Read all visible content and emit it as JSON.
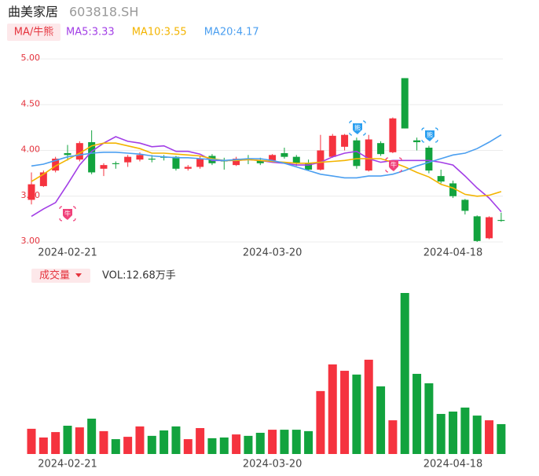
{
  "chart_data": [
    {
      "type": "candlestick",
      "title": "曲美家居",
      "subtitle": "603818.SH",
      "indicator": "MA/牛熊",
      "up_color": "#f5333f",
      "down_color": "#12a33e",
      "categories": [
        null,
        null,
        null,
        "2024-02-21",
        null,
        null,
        null,
        null,
        null,
        null,
        null,
        null,
        null,
        null,
        null,
        null,
        null,
        null,
        null,
        null,
        "2024-03-20",
        null,
        null,
        null,
        null,
        null,
        null,
        null,
        null,
        null,
        null,
        null,
        null,
        null,
        null,
        "2024-04-18",
        null,
        null,
        null,
        null
      ],
      "open": [
        3.46,
        3.61,
        3.78,
        3.97,
        3.9,
        4.09,
        3.8,
        3.86,
        3.87,
        3.9,
        3.91,
        3.93,
        3.93,
        3.8,
        3.82,
        3.94,
        3.89,
        3.84,
        3.91,
        3.89,
        3.89,
        3.97,
        3.93,
        3.86,
        3.79,
        3.93,
        4.04,
        4.11,
        3.78,
        4.08,
        3.98,
        4.79,
        4.11,
        4.03,
        3.72,
        3.64,
        3.46,
        3.28,
        3.04,
        3.24
      ],
      "high": [
        3.76,
        3.78,
        3.93,
        4.06,
        4.1,
        4.22,
        3.86,
        3.88,
        3.95,
        3.98,
        3.95,
        3.95,
        3.94,
        3.84,
        3.94,
        3.96,
        3.92,
        3.93,
        3.95,
        3.92,
        3.96,
        4.03,
        3.95,
        3.9,
        4.17,
        4.18,
        4.18,
        4.14,
        4.17,
        4.1,
        4.36,
        4.79,
        4.14,
        4.05,
        3.79,
        3.67,
        3.47,
        3.29,
        3.28,
        3.32
      ],
      "low": [
        3.41,
        3.6,
        3.76,
        3.89,
        3.88,
        3.74,
        3.72,
        3.8,
        3.82,
        3.88,
        3.87,
        3.89,
        3.78,
        3.78,
        3.8,
        3.84,
        3.79,
        3.83,
        3.85,
        3.84,
        3.88,
        3.91,
        3.83,
        3.78,
        3.78,
        3.92,
        4.0,
        3.8,
        3.77,
        3.94,
        3.97,
        4.24,
        4.0,
        3.75,
        3.64,
        3.48,
        3.3,
        3.0,
        3.03,
        3.22
      ],
      "close": [
        3.63,
        3.76,
        3.91,
        3.95,
        4.08,
        3.76,
        3.84,
        3.85,
        3.93,
        3.95,
        3.9,
        3.92,
        3.8,
        3.82,
        3.91,
        3.86,
        3.88,
        3.91,
        3.9,
        3.86,
        3.95,
        3.93,
        3.86,
        3.79,
        4.0,
        4.16,
        4.17,
        3.83,
        4.12,
        3.96,
        4.35,
        4.24,
        4.09,
        3.78,
        3.66,
        3.5,
        3.34,
        3.01,
        3.27,
        3.23
      ],
      "lines": [
        {
          "name": "MA5:3.33",
          "color": "#a23ee6",
          "values": [
            3.28,
            3.36,
            3.43,
            3.63,
            3.84,
            3.99,
            4.08,
            4.15,
            4.1,
            4.08,
            4.04,
            4.05,
            3.99,
            3.99,
            3.96,
            3.89,
            3.89,
            3.89,
            3.9,
            3.89,
            3.87,
            3.86,
            3.84,
            3.84,
            3.87,
            3.93,
            3.97,
            3.99,
            3.91,
            3.87,
            3.89,
            3.89,
            3.89,
            3.89,
            3.87,
            3.84,
            3.72,
            3.59,
            3.48,
            3.33
          ]
        },
        {
          "name": "MA10:3.55",
          "color": "#f3b400",
          "values": [
            3.66,
            3.74,
            3.83,
            3.9,
            3.97,
            4.05,
            4.08,
            4.08,
            4.05,
            4.02,
            3.97,
            3.97,
            3.96,
            3.95,
            3.94,
            3.91,
            3.89,
            3.89,
            3.9,
            3.89,
            3.88,
            3.87,
            3.86,
            3.86,
            3.87,
            3.88,
            3.89,
            3.91,
            3.91,
            3.91,
            3.87,
            3.82,
            3.76,
            3.71,
            3.63,
            3.59,
            3.52,
            3.5,
            3.51,
            3.55
          ]
        },
        {
          "name": "MA20:4.17",
          "color": "#4b9ff0",
          "values": [
            3.83,
            3.85,
            3.89,
            3.93,
            3.95,
            3.97,
            3.98,
            3.98,
            3.97,
            3.96,
            3.94,
            3.93,
            3.92,
            3.92,
            3.91,
            3.9,
            3.89,
            3.9,
            3.91,
            3.91,
            3.89,
            3.86,
            3.82,
            3.78,
            3.74,
            3.72,
            3.7,
            3.7,
            3.72,
            3.72,
            3.74,
            3.78,
            3.83,
            3.87,
            3.91,
            3.95,
            3.97,
            4.02,
            4.09,
            4.17
          ]
        }
      ],
      "annotations": [
        {
          "label": "牛",
          "color": "#f0407a"
        },
        {
          "label": "熊",
          "color": "#2a9ff0"
        },
        {
          "label": "牛",
          "color": "#f0407a"
        },
        {
          "label": "熊",
          "color": "#2a9ff0"
        }
      ],
      "ylim": [
        3.0,
        5.0
      ],
      "yticks": [
        {
          "value": 3.0,
          "label": "3.00"
        },
        {
          "value": 3.5,
          "label": "3.50"
        },
        {
          "value": 4.0,
          "label": "4.00"
        },
        {
          "value": 4.5,
          "label": "4.50"
        },
        {
          "value": 5.0,
          "label": "5.00"
        }
      ],
      "grid": true
    },
    {
      "type": "bar",
      "title": "成交量",
      "subtitle": "VOL:12.68万手",
      "categories": [
        null,
        null,
        null,
        "2024-02-21",
        null,
        null,
        null,
        null,
        null,
        null,
        null,
        null,
        null,
        null,
        null,
        null,
        null,
        null,
        null,
        null,
        "2024-03-20",
        null,
        null,
        null,
        null,
        null,
        null,
        null,
        null,
        null,
        null,
        null,
        null,
        null,
        null,
        "2024-04-18",
        null,
        null,
        null,
        null
      ],
      "values": [
        10.7,
        7.0,
        9.3,
        12.0,
        11.3,
        15.0,
        9.7,
        6.3,
        7.3,
        11.7,
        7.7,
        10.0,
        11.7,
        6.3,
        11.0,
        6.7,
        7.0,
        8.3,
        7.7,
        9.0,
        10.3,
        10.3,
        10.3,
        9.7,
        26.7,
        38.0,
        35.3,
        33.7,
        40.0,
        28.7,
        14.3,
        68.3,
        34.0,
        30.0,
        17.0,
        18.0,
        19.7,
        16.3,
        14.3,
        12.68
      ]
    }
  ]
}
